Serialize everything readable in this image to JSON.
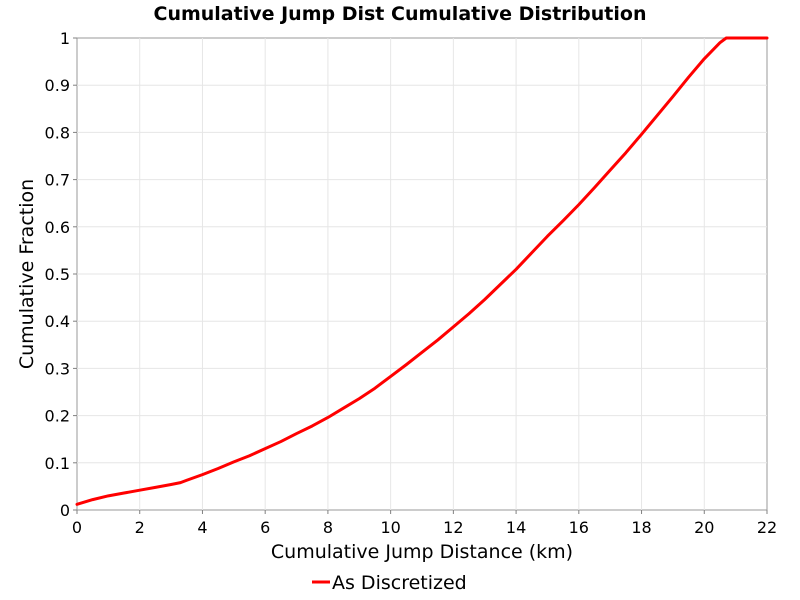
{
  "chart_data": {
    "type": "line",
    "title": "Cumulative Jump Dist Cumulative Distribution",
    "xlabel": "Cumulative Jump Distance (km)",
    "ylabel": "Cumulative Fraction",
    "xlim": [
      0,
      22
    ],
    "ylim": [
      0,
      1
    ],
    "x_ticks": [
      0,
      2,
      4,
      6,
      8,
      10,
      12,
      14,
      16,
      18,
      20,
      22
    ],
    "y_ticks": [
      0,
      0.1,
      0.2,
      0.3,
      0.4,
      0.5,
      0.6,
      0.7,
      0.8,
      0.9,
      1
    ],
    "grid": true,
    "legend_position": "bottom-center",
    "series": [
      {
        "name": "As Discretized",
        "color": "#ff0000",
        "x": [
          0,
          0.5,
          1,
          1.5,
          2,
          2.5,
          3,
          3.3,
          3.5,
          4,
          4.5,
          5,
          5.5,
          6,
          6.5,
          7,
          7.5,
          8,
          8.5,
          9,
          9.5,
          10,
          10.5,
          11,
          11.5,
          12,
          12.5,
          13,
          13.5,
          14,
          14.5,
          15,
          15.5,
          16,
          16.5,
          17,
          17.5,
          18,
          18.5,
          19,
          19.5,
          20,
          20.5,
          20.7,
          22
        ],
        "y": [
          0.012,
          0.022,
          0.03,
          0.036,
          0.042,
          0.048,
          0.054,
          0.058,
          0.063,
          0.075,
          0.088,
          0.102,
          0.115,
          0.13,
          0.145,
          0.162,
          0.178,
          0.196,
          0.216,
          0.236,
          0.258,
          0.283,
          0.308,
          0.334,
          0.36,
          0.388,
          0.416,
          0.446,
          0.478,
          0.51,
          0.545,
          0.58,
          0.613,
          0.647,
          0.683,
          0.72,
          0.757,
          0.796,
          0.836,
          0.876,
          0.917,
          0.956,
          0.99,
          1.0,
          1.0
        ]
      }
    ]
  }
}
